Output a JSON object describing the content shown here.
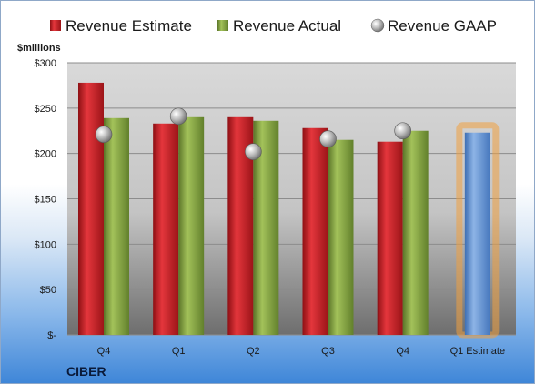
{
  "chart_data": {
    "type": "bar",
    "company": "CIBER",
    "unit_label": "$millions",
    "categories": [
      "Q4",
      "Q1",
      "Q2",
      "Q3",
      "Q4",
      "Q1 Estimate"
    ],
    "y_ticks": [
      {
        "value": 0,
        "label": "$-"
      },
      {
        "value": 50,
        "label": "$50"
      },
      {
        "value": 100,
        "label": "$100"
      },
      {
        "value": 150,
        "label": "$150"
      },
      {
        "value": 200,
        "label": "$200"
      },
      {
        "value": 250,
        "label": "$250"
      },
      {
        "value": 300,
        "label": "$300"
      }
    ],
    "ylim": [
      0,
      300
    ],
    "grid": true,
    "legend_position": "top",
    "series": [
      {
        "name": "Revenue Estimate",
        "kind": "bar",
        "color": "#c0272d",
        "values": [
          278,
          233,
          240,
          228,
          213,
          null
        ]
      },
      {
        "name": "Revenue Actual",
        "kind": "bar",
        "color": "#7f9e3e",
        "values": [
          239,
          240,
          236,
          215,
          225,
          null
        ]
      },
      {
        "name": "Revenue GAAP",
        "kind": "marker",
        "color": "#b8b8b8",
        "values": [
          221,
          241,
          202,
          216,
          225,
          null
        ]
      },
      {
        "name": "",
        "kind": "bar-highlight",
        "color": "#5b8fd0",
        "values": [
          null,
          null,
          null,
          null,
          null,
          223
        ]
      }
    ]
  }
}
